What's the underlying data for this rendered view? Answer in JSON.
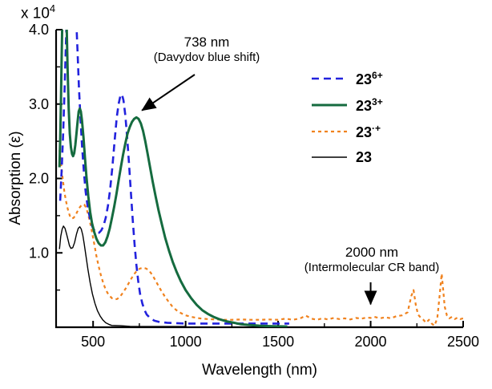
{
  "figure": {
    "scale_prefix": "x 10",
    "scale_exp": "4",
    "xlabel": "Wavelength (nm)",
    "ylabel": "Absorption (ε)"
  },
  "chart_data": {
    "type": "line",
    "title": "",
    "xlabel": "Wavelength (nm)",
    "ylabel": "Absorption (ε)",
    "y_scale_label": "x 10^4",
    "x_range": [
      300,
      2500
    ],
    "y_range": [
      0,
      4.0
    ],
    "x_ticks": [
      500,
      1000,
      1500,
      2000,
      2500
    ],
    "x_minor_ticks": [
      750,
      1250,
      1750,
      2250
    ],
    "y_ticks": [
      1.0,
      2.0,
      3.0,
      4.0
    ],
    "y_minor_ticks": [
      0.5,
      1.5,
      2.5,
      3.5
    ],
    "grid": false,
    "legend_position": "upper-right",
    "series": [
      {
        "name": "23^6+",
        "label_base": "23",
        "label_sup": "6+",
        "color": "#2222dd",
        "style": "dashed",
        "dash": "9,6",
        "width": 2.6,
        "points": [
          [
            322,
            1.7
          ],
          [
            330,
            2.1
          ],
          [
            338,
            2.6
          ],
          [
            346,
            3.2
          ],
          [
            354,
            3.9
          ],
          [
            362,
            4.6
          ],
          [
            370,
            5.0
          ],
          [
            380,
            5.0
          ],
          [
            390,
            4.9
          ],
          [
            400,
            4.6
          ],
          [
            408,
            4.2
          ],
          [
            416,
            3.7
          ],
          [
            424,
            3.2
          ],
          [
            432,
            2.8
          ],
          [
            440,
            2.45
          ],
          [
            450,
            2.1
          ],
          [
            460,
            1.82
          ],
          [
            472,
            1.6
          ],
          [
            484,
            1.45
          ],
          [
            496,
            1.35
          ],
          [
            508,
            1.3
          ],
          [
            520,
            1.27
          ],
          [
            532,
            1.27
          ],
          [
            544,
            1.3
          ],
          [
            556,
            1.36
          ],
          [
            568,
            1.47
          ],
          [
            580,
            1.63
          ],
          [
            592,
            1.85
          ],
          [
            604,
            2.15
          ],
          [
            616,
            2.5
          ],
          [
            628,
            2.82
          ],
          [
            638,
            3.0
          ],
          [
            648,
            3.12
          ],
          [
            656,
            3.13
          ],
          [
            664,
            3.05
          ],
          [
            674,
            2.85
          ],
          [
            684,
            2.55
          ],
          [
            694,
            2.2
          ],
          [
            704,
            1.82
          ],
          [
            714,
            1.45
          ],
          [
            724,
            1.12
          ],
          [
            734,
            0.84
          ],
          [
            744,
            0.62
          ],
          [
            754,
            0.45
          ],
          [
            766,
            0.32
          ],
          [
            778,
            0.23
          ],
          [
            790,
            0.17
          ],
          [
            810,
            0.12
          ],
          [
            830,
            0.09
          ],
          [
            860,
            0.07
          ],
          [
            900,
            0.06
          ],
          [
            950,
            0.055
          ],
          [
            1000,
            0.05
          ],
          [
            1100,
            0.05
          ],
          [
            1200,
            0.05
          ],
          [
            1300,
            0.05
          ],
          [
            1400,
            0.05
          ],
          [
            1500,
            0.05
          ],
          [
            1560,
            0.05
          ]
        ]
      },
      {
        "name": "23^3+",
        "label_base": "23",
        "label_sup": "3+",
        "color": "#156b3f",
        "style": "solid",
        "dash": "",
        "width": 3,
        "points": [
          [
            318,
            2.15
          ],
          [
            322,
            2.5
          ],
          [
            326,
            3.0
          ],
          [
            330,
            3.6
          ],
          [
            334,
            4.2
          ],
          [
            338,
            4.8
          ],
          [
            344,
            5.2
          ],
          [
            350,
            4.9
          ],
          [
            356,
            4.2
          ],
          [
            362,
            3.5
          ],
          [
            368,
            2.95
          ],
          [
            374,
            2.6
          ],
          [
            380,
            2.42
          ],
          [
            386,
            2.33
          ],
          [
            392,
            2.3
          ],
          [
            398,
            2.34
          ],
          [
            404,
            2.45
          ],
          [
            410,
            2.6
          ],
          [
            416,
            2.76
          ],
          [
            422,
            2.9
          ],
          [
            428,
            2.94
          ],
          [
            434,
            2.9
          ],
          [
            440,
            2.78
          ],
          [
            448,
            2.55
          ],
          [
            456,
            2.28
          ],
          [
            464,
            2.02
          ],
          [
            474,
            1.76
          ],
          [
            484,
            1.55
          ],
          [
            494,
            1.4
          ],
          [
            506,
            1.28
          ],
          [
            518,
            1.19
          ],
          [
            530,
            1.13
          ],
          [
            542,
            1.1
          ],
          [
            554,
            1.1
          ],
          [
            566,
            1.14
          ],
          [
            578,
            1.22
          ],
          [
            590,
            1.33
          ],
          [
            602,
            1.47
          ],
          [
            614,
            1.62
          ],
          [
            626,
            1.79
          ],
          [
            638,
            1.97
          ],
          [
            650,
            2.15
          ],
          [
            662,
            2.32
          ],
          [
            674,
            2.47
          ],
          [
            686,
            2.6
          ],
          [
            698,
            2.69
          ],
          [
            710,
            2.76
          ],
          [
            722,
            2.8
          ],
          [
            734,
            2.82
          ],
          [
            746,
            2.8
          ],
          [
            758,
            2.74
          ],
          [
            770,
            2.64
          ],
          [
            782,
            2.5
          ],
          [
            794,
            2.34
          ],
          [
            808,
            2.15
          ],
          [
            822,
            1.96
          ],
          [
            838,
            1.76
          ],
          [
            854,
            1.57
          ],
          [
            872,
            1.38
          ],
          [
            890,
            1.2
          ],
          [
            910,
            1.03
          ],
          [
            930,
            0.88
          ],
          [
            952,
            0.74
          ],
          [
            974,
            0.62
          ],
          [
            1000,
            0.5
          ],
          [
            1030,
            0.39
          ],
          [
            1060,
            0.3
          ],
          [
            1090,
            0.23
          ],
          [
            1120,
            0.18
          ],
          [
            1150,
            0.14
          ],
          [
            1180,
            0.11
          ],
          [
            1220,
            0.08
          ],
          [
            1260,
            0.06
          ],
          [
            1300,
            0.04
          ],
          [
            1350,
            0.03
          ],
          [
            1400,
            0.02
          ],
          [
            1450,
            0.015
          ],
          [
            1500,
            0.012
          ],
          [
            1550,
            0.01
          ]
        ]
      },
      {
        "name": "23^.+",
        "label_base": "23",
        "label_sup": "·+",
        "color": "#f0821e",
        "style": "short-dashed",
        "dash": "4,4",
        "width": 2.2,
        "points": [
          [
            318,
            2.38
          ],
          [
            324,
            2.26
          ],
          [
            330,
            2.12
          ],
          [
            338,
            1.95
          ],
          [
            346,
            1.8
          ],
          [
            355,
            1.68
          ],
          [
            364,
            1.58
          ],
          [
            374,
            1.5
          ],
          [
            384,
            1.46
          ],
          [
            394,
            1.47
          ],
          [
            404,
            1.5
          ],
          [
            414,
            1.55
          ],
          [
            424,
            1.6
          ],
          [
            434,
            1.63
          ],
          [
            444,
            1.65
          ],
          [
            452,
            1.65
          ],
          [
            462,
            1.61
          ],
          [
            472,
            1.53
          ],
          [
            482,
            1.43
          ],
          [
            494,
            1.28
          ],
          [
            506,
            1.12
          ],
          [
            518,
            0.96
          ],
          [
            530,
            0.82
          ],
          [
            542,
            0.7
          ],
          [
            554,
            0.6
          ],
          [
            566,
            0.52
          ],
          [
            578,
            0.46
          ],
          [
            590,
            0.42
          ],
          [
            602,
            0.39
          ],
          [
            616,
            0.375
          ],
          [
            630,
            0.38
          ],
          [
            645,
            0.41
          ],
          [
            660,
            0.46
          ],
          [
            676,
            0.52
          ],
          [
            692,
            0.59
          ],
          [
            708,
            0.66
          ],
          [
            724,
            0.72
          ],
          [
            740,
            0.77
          ],
          [
            755,
            0.79
          ],
          [
            770,
            0.8
          ],
          [
            785,
            0.79
          ],
          [
            800,
            0.77
          ],
          [
            815,
            0.72
          ],
          [
            830,
            0.66
          ],
          [
            848,
            0.58
          ],
          [
            866,
            0.5
          ],
          [
            886,
            0.42
          ],
          [
            906,
            0.35
          ],
          [
            928,
            0.28
          ],
          [
            950,
            0.23
          ],
          [
            975,
            0.19
          ],
          [
            1000,
            0.16
          ],
          [
            1030,
            0.14
          ],
          [
            1060,
            0.125
          ],
          [
            1090,
            0.115
          ],
          [
            1120,
            0.11
          ],
          [
            1160,
            0.105
          ],
          [
            1200,
            0.1
          ],
          [
            1250,
            0.1
          ],
          [
            1300,
            0.105
          ],
          [
            1350,
            0.1
          ],
          [
            1400,
            0.1
          ],
          [
            1450,
            0.105
          ],
          [
            1500,
            0.1
          ],
          [
            1540,
            0.115
          ],
          [
            1580,
            0.1
          ],
          [
            1620,
            0.12
          ],
          [
            1650,
            0.155
          ],
          [
            1680,
            0.115
          ],
          [
            1710,
            0.1
          ],
          [
            1740,
            0.12
          ],
          [
            1770,
            0.105
          ],
          [
            1800,
            0.125
          ],
          [
            1830,
            0.11
          ],
          [
            1860,
            0.12
          ],
          [
            1890,
            0.105
          ],
          [
            1920,
            0.125
          ],
          [
            1950,
            0.115
          ],
          [
            1980,
            0.13
          ],
          [
            2000,
            0.125
          ],
          [
            2020,
            0.14
          ],
          [
            2050,
            0.12
          ],
          [
            2080,
            0.135
          ],
          [
            2110,
            0.12
          ],
          [
            2140,
            0.15
          ],
          [
            2170,
            0.16
          ],
          [
            2200,
            0.2
          ],
          [
            2220,
            0.42
          ],
          [
            2232,
            0.5
          ],
          [
            2244,
            0.3
          ],
          [
            2256,
            0.17
          ],
          [
            2270,
            0.13
          ],
          [
            2285,
            0.1
          ],
          [
            2300,
            0.06
          ],
          [
            2315,
            0.1
          ],
          [
            2330,
            0.05
          ],
          [
            2345,
            0.02
          ],
          [
            2360,
            0.12
          ],
          [
            2372,
            0.4
          ],
          [
            2384,
            0.72
          ],
          [
            2392,
            0.5
          ],
          [
            2400,
            0.28
          ],
          [
            2412,
            0.16
          ],
          [
            2425,
            0.12
          ],
          [
            2440,
            0.14
          ],
          [
            2455,
            0.11
          ],
          [
            2470,
            0.13
          ],
          [
            2485,
            0.11
          ],
          [
            2500,
            0.12
          ]
        ]
      },
      {
        "name": "23",
        "label_base": "23",
        "label_sup": "",
        "color": "#000000",
        "style": "solid",
        "dash": "",
        "width": 1.4,
        "points": [
          [
            318,
            1.05
          ],
          [
            325,
            1.22
          ],
          [
            333,
            1.32
          ],
          [
            340,
            1.36
          ],
          [
            348,
            1.33
          ],
          [
            356,
            1.26
          ],
          [
            364,
            1.18
          ],
          [
            372,
            1.1
          ],
          [
            380,
            1.06
          ],
          [
            390,
            1.07
          ],
          [
            400,
            1.14
          ],
          [
            410,
            1.25
          ],
          [
            420,
            1.33
          ],
          [
            428,
            1.35
          ],
          [
            436,
            1.32
          ],
          [
            444,
            1.24
          ],
          [
            452,
            1.12
          ],
          [
            462,
            0.95
          ],
          [
            472,
            0.78
          ],
          [
            484,
            0.6
          ],
          [
            496,
            0.45
          ],
          [
            510,
            0.32
          ],
          [
            524,
            0.22
          ],
          [
            538,
            0.15
          ],
          [
            552,
            0.1
          ],
          [
            568,
            0.06
          ],
          [
            584,
            0.04
          ],
          [
            600,
            0.025
          ],
          [
            650,
            0.02
          ],
          [
            700,
            0.012
          ],
          [
            800,
            0.01
          ],
          [
            900,
            0.01
          ],
          [
            1000,
            0.01
          ]
        ]
      }
    ],
    "annotations": [
      {
        "lines": [
          "738 nm",
          "(Davydov blue shift)"
        ],
        "target_wavelength": 738,
        "target_epsilon": 2.85
      },
      {
        "lines": [
          "2000 nm",
          "(Intermolecular CR band)"
        ],
        "target_wavelength": 2000,
        "target_epsilon": 0.2
      }
    ]
  }
}
